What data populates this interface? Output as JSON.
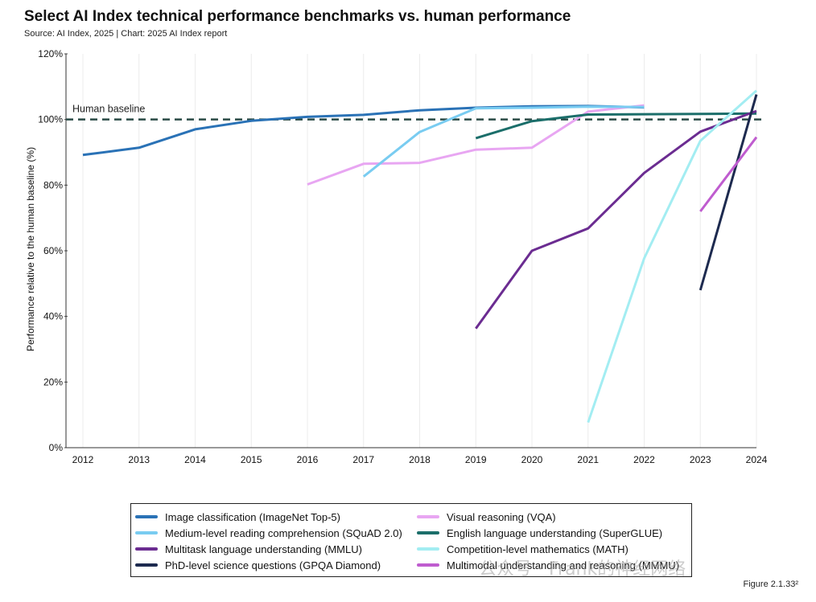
{
  "header": {
    "title": "Select AI Index technical performance benchmarks vs. human performance",
    "subtitle": "Source: AI Index, 2025 | Chart: 2025 AI Index report"
  },
  "footer": {
    "figure_number": "Figure 2.1.33²",
    "watermark": "公众号 · Frank的神经网络"
  },
  "chart_data": {
    "type": "line",
    "title": "Select AI Index technical performance benchmarks vs. human performance",
    "subtitle": "Source: AI Index, 2025 | Chart: 2025 AI Index report",
    "xlabel": "",
    "ylabel": "Performance relative to the human baseline (%)",
    "x_ticks": [
      2012,
      2013,
      2014,
      2015,
      2016,
      2017,
      2018,
      2019,
      2020,
      2021,
      2022,
      2023,
      2024
    ],
    "y_ticks": [
      "0%",
      "20%",
      "40%",
      "60%",
      "80%",
      "100%",
      "120%"
    ],
    "ylim": [
      0,
      120
    ],
    "xlim": [
      2012,
      2024
    ],
    "grid": "vertical",
    "baseline": {
      "label": "Human baseline",
      "value": 100
    },
    "legend_position": "bottom",
    "series": [
      {
        "name": "Image classification (ImageNet Top-5)",
        "color": "#2a72b6",
        "points": [
          [
            2012,
            89.2
          ],
          [
            2013,
            91.4
          ],
          [
            2014,
            97.0
          ],
          [
            2015,
            99.6
          ],
          [
            2016,
            100.8
          ],
          [
            2017,
            101.4
          ],
          [
            2018,
            102.8
          ],
          [
            2019,
            103.6
          ],
          [
            2020,
            104.0
          ],
          [
            2021,
            104.1
          ],
          [
            2022,
            103.7
          ]
        ]
      },
      {
        "name": "Visual reasoning (VQA)",
        "color": "#e8a6f2",
        "points": [
          [
            2016,
            80.2
          ],
          [
            2017,
            86.5
          ],
          [
            2018,
            86.8
          ],
          [
            2019,
            90.8
          ],
          [
            2020,
            91.4
          ],
          [
            2021,
            102.4
          ],
          [
            2022,
            104.3
          ]
        ]
      },
      {
        "name": "Medium-level reading comprehension (SQuAD 2.0)",
        "color": "#79ccf1",
        "points": [
          [
            2017,
            82.6
          ],
          [
            2018,
            96.2
          ],
          [
            2019,
            103.4
          ],
          [
            2020,
            103.6
          ],
          [
            2021,
            103.9
          ],
          [
            2022,
            103.8
          ]
        ]
      },
      {
        "name": "English language understanding (SuperGLUE)",
        "color": "#1b6e6a",
        "points": [
          [
            2019,
            94.3
          ],
          [
            2020,
            99.5
          ],
          [
            2021,
            101.5
          ],
          [
            2022,
            101.6
          ],
          [
            2023,
            101.7
          ],
          [
            2024,
            101.8
          ]
        ]
      },
      {
        "name": "Multitask language understanding (MMLU)",
        "color": "#6b2c91",
        "points": [
          [
            2019,
            36.3
          ],
          [
            2020,
            60.0
          ],
          [
            2021,
            66.8
          ],
          [
            2022,
            83.7
          ],
          [
            2023,
            96.3
          ],
          [
            2024,
            102.6
          ]
        ]
      },
      {
        "name": "Competition-level mathematics (MATH)",
        "color": "#a3edf2",
        "points": [
          [
            2021,
            7.7
          ],
          [
            2022,
            57.7
          ],
          [
            2023,
            93.5
          ],
          [
            2024,
            108.8
          ]
        ]
      },
      {
        "name": "PhD-level science questions (GPQA Diamond)",
        "color": "#1d2a4f",
        "points": [
          [
            2023,
            48.0
          ],
          [
            2024,
            107.6
          ]
        ]
      },
      {
        "name": "Multimodal understanding and reasoning (MMMU)",
        "color": "#bf5ccf",
        "points": [
          [
            2023,
            72.0
          ],
          [
            2024,
            94.6
          ]
        ]
      }
    ],
    "legend_order": [
      0,
      1,
      2,
      3,
      4,
      5,
      6,
      7
    ]
  }
}
